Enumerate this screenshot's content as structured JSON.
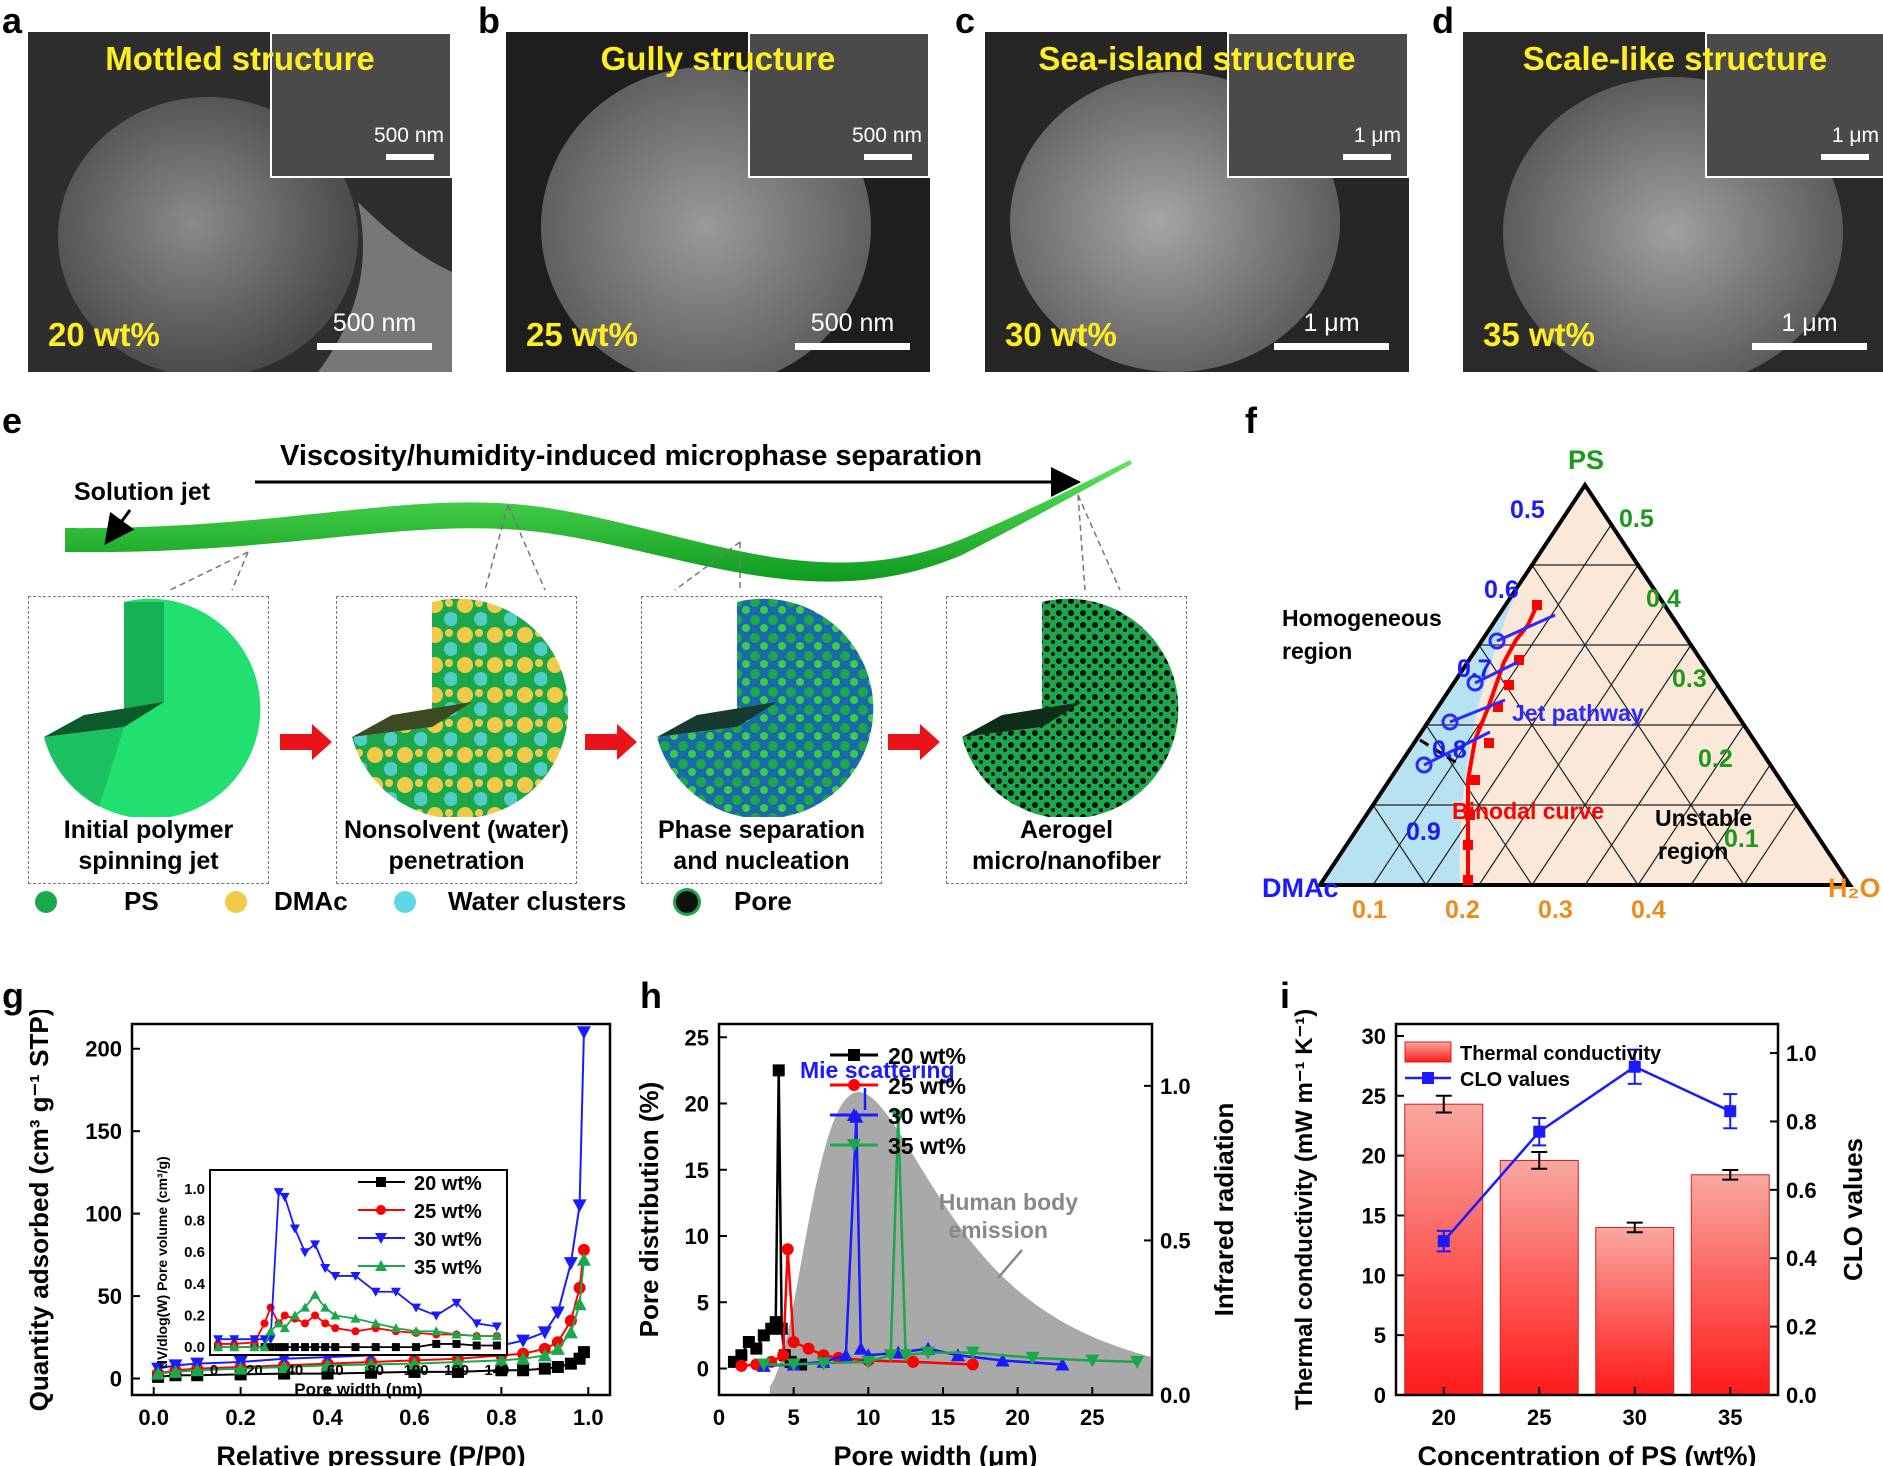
{
  "panel_labels": {
    "a": "a",
    "b": "b",
    "c": "c",
    "d": "d",
    "e": "e",
    "f": "f",
    "g": "g",
    "h": "h",
    "i": "i"
  },
  "sem": [
    {
      "structure": "Mottled structure",
      "concentration": "20 wt%",
      "scale": "500 nm",
      "inset_scale": "500 nm"
    },
    {
      "structure": "Gully structure",
      "concentration": "25 wt%",
      "scale": "500 nm",
      "inset_scale": "500 nm"
    },
    {
      "structure": "Sea-island structure",
      "concentration": "30 wt%",
      "scale": "1 μm",
      "inset_scale": "1 μm"
    },
    {
      "structure": "Scale-like structure",
      "concentration": "35 wt%",
      "scale": "1 μm",
      "inset_scale": "1 μm"
    }
  ],
  "process": {
    "title": "Viscosity/humidity-induced microphase separation",
    "jet_label": "Solution jet",
    "steps": [
      {
        "line1": "Initial polymer",
        "line2": "spinning jet"
      },
      {
        "line1": "Nonsolvent (water)",
        "line2": "penetration"
      },
      {
        "line1": "Phase separation",
        "line2": "and nucleation"
      },
      {
        "line1": "Aerogel",
        "line2": "micro/nanofiber"
      }
    ],
    "legend": [
      {
        "label": "PS",
        "color": "#1aa84a"
      },
      {
        "label": "DMAc",
        "color": "#f3c94a"
      },
      {
        "label": "Water clusters",
        "color": "#5fd6e4"
      },
      {
        "label": "Pore",
        "color": "#111111"
      }
    ]
  },
  "ternary": {
    "vertex_top": "PS",
    "vertex_left": "DMAc",
    "vertex_right": "H₂O",
    "left_ticks": [
      "0.5",
      "0.6",
      "0.7",
      "0.8",
      "0.9"
    ],
    "right_ticks": [
      "0.5",
      "0.4",
      "0.3",
      "0.2",
      "0.1"
    ],
    "bottom_ticks": [
      "0.1",
      "0.2",
      "0.3",
      "0.4"
    ],
    "homogeneous": "Homogeneous",
    "homogeneous2": "region",
    "jet": "Jet pathway",
    "binodal": "Binodal curve",
    "unstable": "Unstable",
    "unstable2": "region"
  },
  "chart_data": [
    {
      "type": "line",
      "panel": "g",
      "xlabel": "Relative pressure (P/P0)",
      "ylabel": "Quantity adsorbed (cm³ g⁻¹ STP)",
      "xlim": [
        -0.05,
        1.05
      ],
      "ylim": [
        -10,
        215
      ],
      "xticks": [
        "0.0",
        "0.2",
        "0.4",
        "0.6",
        "0.8",
        "1.0"
      ],
      "yticks": [
        "0",
        "50",
        "100",
        "150",
        "200"
      ],
      "x": [
        0.01,
        0.05,
        0.1,
        0.2,
        0.3,
        0.4,
        0.5,
        0.6,
        0.7,
        0.8,
        0.85,
        0.9,
        0.93,
        0.96,
        0.98,
        0.99
      ],
      "series": [
        {
          "name": "20 wt%",
          "color": "#000000",
          "marker": "square",
          "values": [
            1,
            2,
            2,
            2.5,
            3,
            3,
            3.5,
            4,
            4,
            5,
            5,
            6,
            7,
            9,
            12,
            16
          ]
        },
        {
          "name": "25 wt%",
          "color": "#ff0000",
          "marker": "circle",
          "values": [
            3,
            5,
            6,
            7,
            8,
            9,
            10,
            11,
            12,
            14,
            15,
            18,
            22,
            35,
            55,
            78
          ]
        },
        {
          "name": "30 wt%",
          "color": "#1a1aff",
          "marker": "tri-down",
          "values": [
            6,
            8,
            9,
            10,
            12,
            13,
            14,
            16,
            17,
            20,
            23,
            28,
            40,
            70,
            105,
            210
          ]
        },
        {
          "name": "35 wt%",
          "color": "#1aa84a",
          "marker": "tri-up",
          "values": [
            3,
            4,
            5,
            6,
            7,
            8,
            8.5,
            9,
            10,
            11,
            12,
            14,
            18,
            28,
            45,
            72
          ]
        }
      ],
      "inset": {
        "xlabel": "Pore width (nm)",
        "ylabel": "dV/dlog(W) Pore volume (cm³/g)",
        "xlim": [
          -2,
          145
        ],
        "ylim": [
          -0.05,
          1.12
        ],
        "xticks": [
          "0",
          "20",
          "40",
          "60",
          "80",
          "100",
          "120",
          "140"
        ],
        "yticks": [
          "0.0",
          "0.2",
          "0.4",
          "0.6",
          "0.8",
          "1.0"
        ],
        "x": [
          2,
          10,
          20,
          25,
          28,
          32,
          35,
          40,
          45,
          50,
          55,
          60,
          70,
          80,
          90,
          100,
          110,
          120,
          130,
          140
        ],
        "series": [
          {
            "name": "20 wt%",
            "values": [
              0,
              0,
              0,
              0,
              0,
              0,
              0,
              0,
              0,
              0,
              0,
              0,
              0,
              0,
              0,
              0,
              0.02,
              0.02,
              0.01,
              0.01
            ]
          },
          {
            "name": "25 wt%",
            "values": [
              0.02,
              0.02,
              0.03,
              0.15,
              0.25,
              0.15,
              0.2,
              0.18,
              0.15,
              0.2,
              0.15,
              0.12,
              0.1,
              0.12,
              0.1,
              0.09,
              0.08,
              0.08,
              0.07,
              0.07
            ]
          },
          {
            "name": "30 wt%",
            "values": [
              0.05,
              0.05,
              0.05,
              0.05,
              0.05,
              0.98,
              0.95,
              0.75,
              0.6,
              0.65,
              0.5,
              0.45,
              0.45,
              0.35,
              0.35,
              0.25,
              0.2,
              0.28,
              0.15,
              0.13
            ]
          },
          {
            "name": "35 wt%",
            "values": [
              0.0,
              0.0,
              0.0,
              0.0,
              0.1,
              0.15,
              0.12,
              0.2,
              0.25,
              0.33,
              0.25,
              0.2,
              0.18,
              0.15,
              0.12,
              0.1,
              0.1,
              0.08,
              0.07,
              0.07
            ]
          }
        ]
      }
    },
    {
      "type": "line",
      "panel": "h",
      "xlabel": "Pore width (μm)",
      "ylabel": "Pore distribution (%)",
      "ylabel_right": "Infrared radiation",
      "xlim": [
        0,
        29
      ],
      "ylim": [
        -2,
        26
      ],
      "ylim_right": [
        0,
        1.2
      ],
      "xticks": [
        "0",
        "5",
        "10",
        "15",
        "20",
        "25"
      ],
      "yticks": [
        "0",
        "5",
        "10",
        "15",
        "20",
        "25"
      ],
      "yticks_right": [
        "0.0",
        "0.5",
        "1.0"
      ],
      "annotation_mie": "Mie scattering",
      "annotation_body": "Human body",
      "annotation_body2": "emission",
      "series": [
        {
          "name": "20 wt%",
          "color": "#000000",
          "marker": "square",
          "x": [
            1,
            1.5,
            2,
            2.5,
            3,
            3.5,
            3.8,
            4.0,
            4.2,
            4.4,
            4.8,
            5.5
          ],
          "values": [
            0.5,
            1,
            2,
            1.5,
            2.5,
            3,
            3.5,
            22.5,
            3,
            1,
            0.5,
            0.3
          ]
        },
        {
          "name": "25 wt%",
          "color": "#ff0000",
          "marker": "circle",
          "x": [
            1.5,
            2.5,
            3.5,
            4.3,
            4.6,
            5,
            6,
            7,
            8,
            10,
            13,
            17
          ],
          "values": [
            0.2,
            0.3,
            0.5,
            1,
            9,
            2,
            1.5,
            1,
            0.8,
            0.6,
            0.5,
            0.3
          ]
        },
        {
          "name": "30 wt%",
          "color": "#1a1aff",
          "marker": "tri-up",
          "x": [
            3,
            5,
            7,
            8.5,
            9.2,
            9.5,
            10,
            12,
            14,
            16,
            19,
            23
          ],
          "values": [
            0.2,
            0.3,
            0.5,
            1,
            19,
            1.5,
            1,
            1.2,
            1.5,
            1,
            0.6,
            0.3
          ]
        },
        {
          "name": "35 wt%",
          "color": "#1aa84a",
          "marker": "tri-down",
          "x": [
            3,
            5,
            7,
            10,
            11.5,
            12.0,
            12.5,
            14,
            17,
            21,
            25,
            28
          ],
          "values": [
            0.3,
            0.3,
            0.4,
            0.5,
            1,
            19,
            1,
            1.2,
            1.2,
            0.8,
            0.6,
            0.5
          ]
        }
      ]
    },
    {
      "type": "bar",
      "panel": "i",
      "xlabel": "Concentration of PS (wt%)",
      "ylabel": "Thermal conductivity (mW m⁻¹ K⁻¹)",
      "ylabel_right": "CLO values",
      "categories": [
        "20",
        "25",
        "30",
        "35"
      ],
      "ylim": [
        0,
        31
      ],
      "ylim_right": [
        0,
        1.085
      ],
      "yticks": [
        "0",
        "5",
        "10",
        "15",
        "20",
        "25",
        "30"
      ],
      "yticks_right": [
        "0.0",
        "0.2",
        "0.4",
        "0.6",
        "0.8",
        "1.0"
      ],
      "series": [
        {
          "name": "Thermal conductivity",
          "type": "bar",
          "values": [
            24.3,
            19.6,
            14.0,
            18.4
          ],
          "errors": [
            0.7,
            0.7,
            0.4,
            0.4
          ]
        },
        {
          "name": "CLO values",
          "type": "line",
          "color": "#1a1aff",
          "values": [
            0.45,
            0.77,
            0.96,
            0.83
          ],
          "errors": [
            0.03,
            0.04,
            0.05,
            0.05
          ]
        }
      ]
    }
  ]
}
